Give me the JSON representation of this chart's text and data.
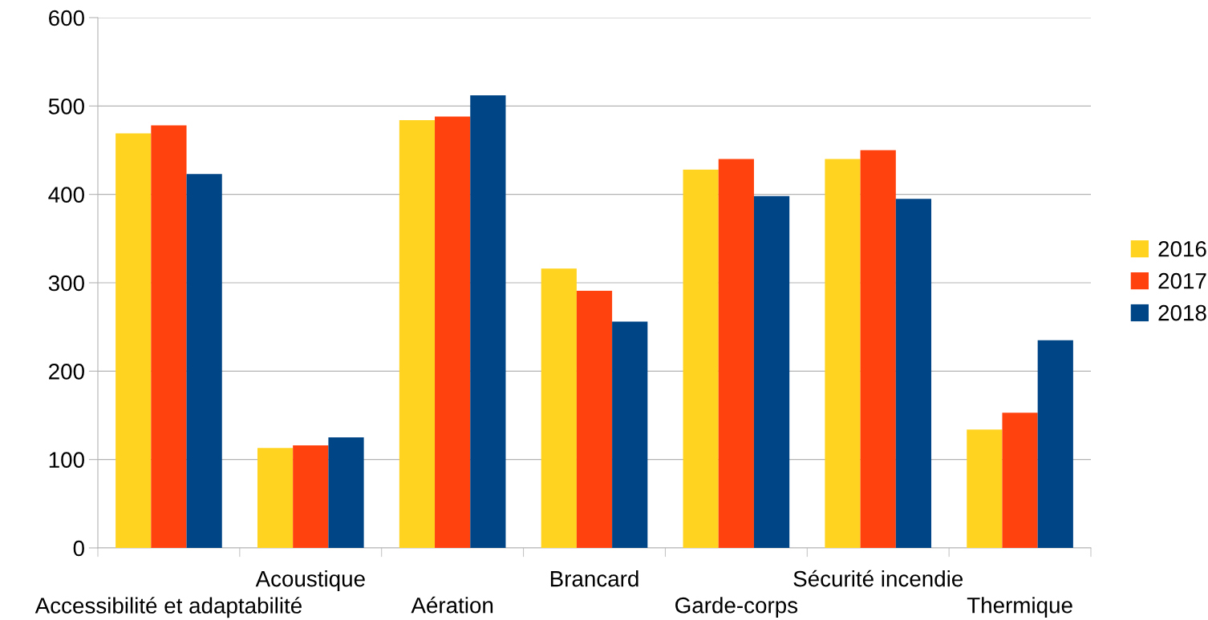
{
  "chart_data": {
    "type": "bar",
    "categories": [
      "Accessibilité et adaptabilité",
      "Acoustique",
      "Aération",
      "Brancard",
      "Garde-corps",
      "Sécurité incendie",
      "Thermique"
    ],
    "series": [
      {
        "name": "2016",
        "color": "#ffd320",
        "values": [
          469,
          113,
          484,
          316,
          428,
          440,
          134
        ]
      },
      {
        "name": "2017",
        "color": "#ff420e",
        "values": [
          478,
          116,
          488,
          291,
          440,
          450,
          153
        ]
      },
      {
        "name": "2018",
        "color": "#004586",
        "values": [
          423,
          125,
          512,
          256,
          398,
          395,
          235
        ]
      }
    ],
    "ylim": [
      0,
      600
    ],
    "yticks": [
      0,
      100,
      200,
      300,
      400,
      500,
      600
    ],
    "grid": "y",
    "legend": "right"
  }
}
